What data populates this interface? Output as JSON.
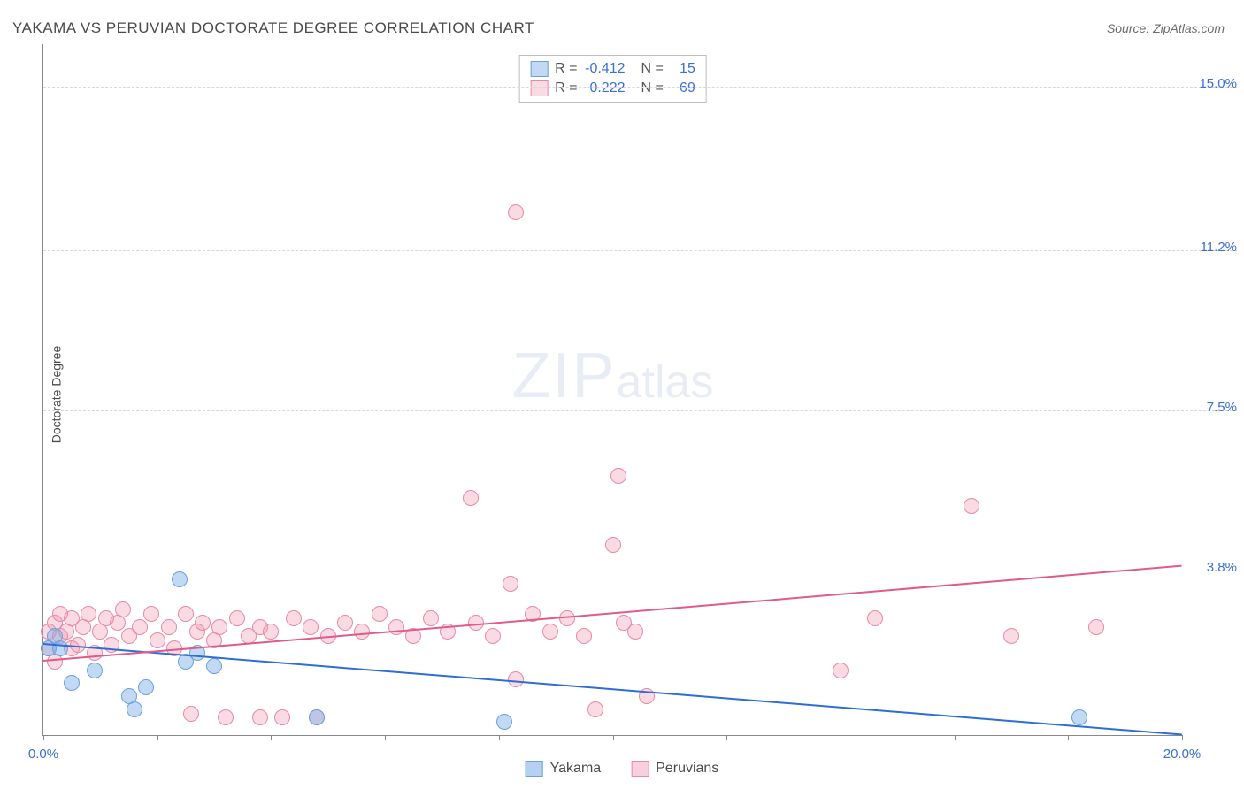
{
  "title": "YAKAMA VS PERUVIAN DOCTORATE DEGREE CORRELATION CHART",
  "source_label": "Source: ZipAtlas.com",
  "ylabel": "Doctorate Degree",
  "watermark": {
    "part1": "ZIP",
    "part2": "atlas"
  },
  "chart": {
    "type": "scatter",
    "xlim": [
      0,
      20
    ],
    "ylim": [
      0,
      16
    ],
    "background_color": "#ffffff",
    "grid_color": "#d8d8d8",
    "axis_color": "#888888",
    "label_color": "#3a6fd8",
    "xticks": [
      0,
      2,
      4,
      6,
      8,
      10,
      12,
      14,
      16,
      18,
      20
    ],
    "xtick_labels": {
      "0": "0.0%",
      "20": "20.0%"
    },
    "yticks": [
      3.8,
      7.5,
      11.2,
      15.0
    ],
    "ytick_labels": [
      "3.8%",
      "7.5%",
      "11.2%",
      "15.0%"
    ],
    "series": [
      {
        "name": "Yakama",
        "fill_color": "rgba(120,170,230,0.45)",
        "stroke_color": "#6aa1dd",
        "trend": {
          "x1": 0,
          "y1": 2.1,
          "x2": 20,
          "y2": 0.0,
          "color": "#2d6dd6",
          "width": 2
        },
        "stats": {
          "R": "-0.412",
          "N": "15"
        },
        "marker_radius": 9,
        "points": [
          [
            0.1,
            2.0
          ],
          [
            0.2,
            2.3
          ],
          [
            0.3,
            2.0
          ],
          [
            0.5,
            1.2
          ],
          [
            0.9,
            1.5
          ],
          [
            1.5,
            0.9
          ],
          [
            1.8,
            1.1
          ],
          [
            1.6,
            0.6
          ],
          [
            2.4,
            3.6
          ],
          [
            2.5,
            1.7
          ],
          [
            2.7,
            1.9
          ],
          [
            3.0,
            1.6
          ],
          [
            4.8,
            0.4
          ],
          [
            8.1,
            0.3
          ],
          [
            18.2,
            0.4
          ]
        ]
      },
      {
        "name": "Peruvians",
        "fill_color": "rgba(240,150,175,0.35)",
        "stroke_color": "#e68aa5",
        "trend": {
          "x1": 0,
          "y1": 1.7,
          "x2": 20,
          "y2": 3.9,
          "color": "#e05a8a",
          "width": 2
        },
        "stats": {
          "R": "0.222",
          "N": "69"
        },
        "marker_radius": 9,
        "points": [
          [
            0.1,
            2.4
          ],
          [
            0.1,
            2.0
          ],
          [
            0.2,
            2.6
          ],
          [
            0.2,
            1.7
          ],
          [
            0.3,
            2.3
          ],
          [
            0.3,
            2.8
          ],
          [
            0.4,
            2.4
          ],
          [
            0.5,
            2.0
          ],
          [
            0.5,
            2.7
          ],
          [
            0.6,
            2.1
          ],
          [
            0.7,
            2.5
          ],
          [
            0.8,
            2.8
          ],
          [
            0.9,
            1.9
          ],
          [
            1.0,
            2.4
          ],
          [
            1.1,
            2.7
          ],
          [
            1.2,
            2.1
          ],
          [
            1.3,
            2.6
          ],
          [
            1.4,
            2.9
          ],
          [
            1.5,
            2.3
          ],
          [
            1.7,
            2.5
          ],
          [
            1.9,
            2.8
          ],
          [
            2.0,
            2.2
          ],
          [
            2.2,
            2.5
          ],
          [
            2.3,
            2.0
          ],
          [
            2.5,
            2.8
          ],
          [
            2.6,
            0.5
          ],
          [
            2.7,
            2.4
          ],
          [
            2.8,
            2.6
          ],
          [
            3.0,
            2.2
          ],
          [
            3.1,
            2.5
          ],
          [
            3.2,
            0.4
          ],
          [
            3.4,
            2.7
          ],
          [
            3.6,
            2.3
          ],
          [
            3.8,
            2.5
          ],
          [
            3.8,
            0.4
          ],
          [
            4.0,
            2.4
          ],
          [
            4.2,
            0.4
          ],
          [
            4.4,
            2.7
          ],
          [
            4.7,
            2.5
          ],
          [
            4.8,
            0.4
          ],
          [
            5.0,
            2.3
          ],
          [
            5.3,
            2.6
          ],
          [
            5.6,
            2.4
          ],
          [
            5.9,
            2.8
          ],
          [
            6.2,
            2.5
          ],
          [
            6.5,
            2.3
          ],
          [
            6.8,
            2.7
          ],
          [
            7.1,
            2.4
          ],
          [
            7.5,
            5.5
          ],
          [
            7.6,
            2.6
          ],
          [
            7.9,
            2.3
          ],
          [
            8.2,
            3.5
          ],
          [
            8.3,
            1.3
          ],
          [
            8.3,
            12.1
          ],
          [
            8.6,
            2.8
          ],
          [
            8.9,
            2.4
          ],
          [
            9.2,
            2.7
          ],
          [
            9.5,
            2.3
          ],
          [
            9.7,
            0.6
          ],
          [
            10.0,
            4.4
          ],
          [
            10.1,
            6.0
          ],
          [
            10.2,
            2.6
          ],
          [
            10.4,
            2.4
          ],
          [
            10.6,
            0.9
          ],
          [
            14.0,
            1.5
          ],
          [
            14.6,
            2.7
          ],
          [
            16.3,
            5.3
          ],
          [
            17.0,
            2.3
          ],
          [
            18.5,
            2.5
          ]
        ]
      }
    ]
  },
  "bottom_legend": [
    {
      "label": "Yakama",
      "fill": "rgba(120,170,230,0.55)",
      "border": "#6aa1dd"
    },
    {
      "label": "Peruvians",
      "fill": "rgba(240,150,175,0.45)",
      "border": "#e68aa5"
    }
  ]
}
